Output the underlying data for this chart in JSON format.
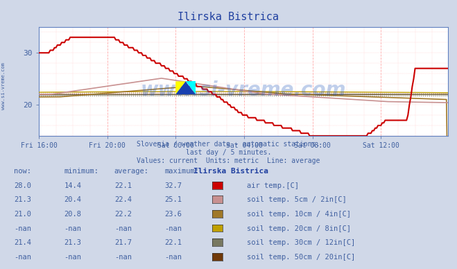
{
  "title": "Ilirska Bistrica",
  "bg_color": "#d0d8e8",
  "plot_bg_color": "#ffffff",
  "x_labels": [
    "Fri 16:00",
    "Fri 20:00",
    "Sat 00:00",
    "Sat 04:00",
    "Sat 08:00",
    "Sat 12:00"
  ],
  "x_ticks": [
    0,
    48,
    96,
    144,
    192,
    240
  ],
  "ylim_min": 14,
  "ylim_max": 35,
  "yticks": [
    20,
    30
  ],
  "series_colors": {
    "air_temp": "#cc0000",
    "soil_5cm": "#c89090",
    "soil_10cm": "#a07828",
    "soil_20cm": "#c0a000",
    "soil_30cm": "#787860",
    "soil_50cm": "#703808"
  },
  "avg_lines": {
    "air_temp": 22.1,
    "soil_5cm": 22.4,
    "soil_10cm": 22.2,
    "soil_30cm": 21.7
  },
  "subtitle1": "Slovenia / weather data - automatic stations.",
  "subtitle2": "last day / 5 minutes.",
  "subtitle3": "Values: current  Units: metric  Line: average",
  "table_headers": [
    "now:",
    "minimum:",
    "average:",
    "maximum:",
    "Ilirska Bistrica"
  ],
  "table_data": [
    [
      "28.0",
      "14.4",
      "22.1",
      "32.7",
      "#cc0000",
      "air temp.[C]"
    ],
    [
      "21.3",
      "20.4",
      "22.4",
      "25.1",
      "#c89090",
      "soil temp. 5cm / 2in[C]"
    ],
    [
      "21.0",
      "20.8",
      "22.2",
      "23.6",
      "#a07828",
      "soil temp. 10cm / 4in[C]"
    ],
    [
      "-nan",
      "-nan",
      "-nan",
      "-nan",
      "#c0a000",
      "soil temp. 20cm / 8in[C]"
    ],
    [
      "21.4",
      "21.3",
      "21.7",
      "22.1",
      "#787860",
      "soil temp. 30cm / 12in[C]"
    ],
    [
      "-nan",
      "-nan",
      "-nan",
      "-nan",
      "#703808",
      "soil temp. 50cm / 20in[C]"
    ]
  ],
  "watermark": "www.si-vreme.com",
  "watermark_color": "#3060c0",
  "watermark_alpha": 0.3,
  "n_points": 288,
  "text_color": "#4060a0",
  "title_color": "#2040a0"
}
